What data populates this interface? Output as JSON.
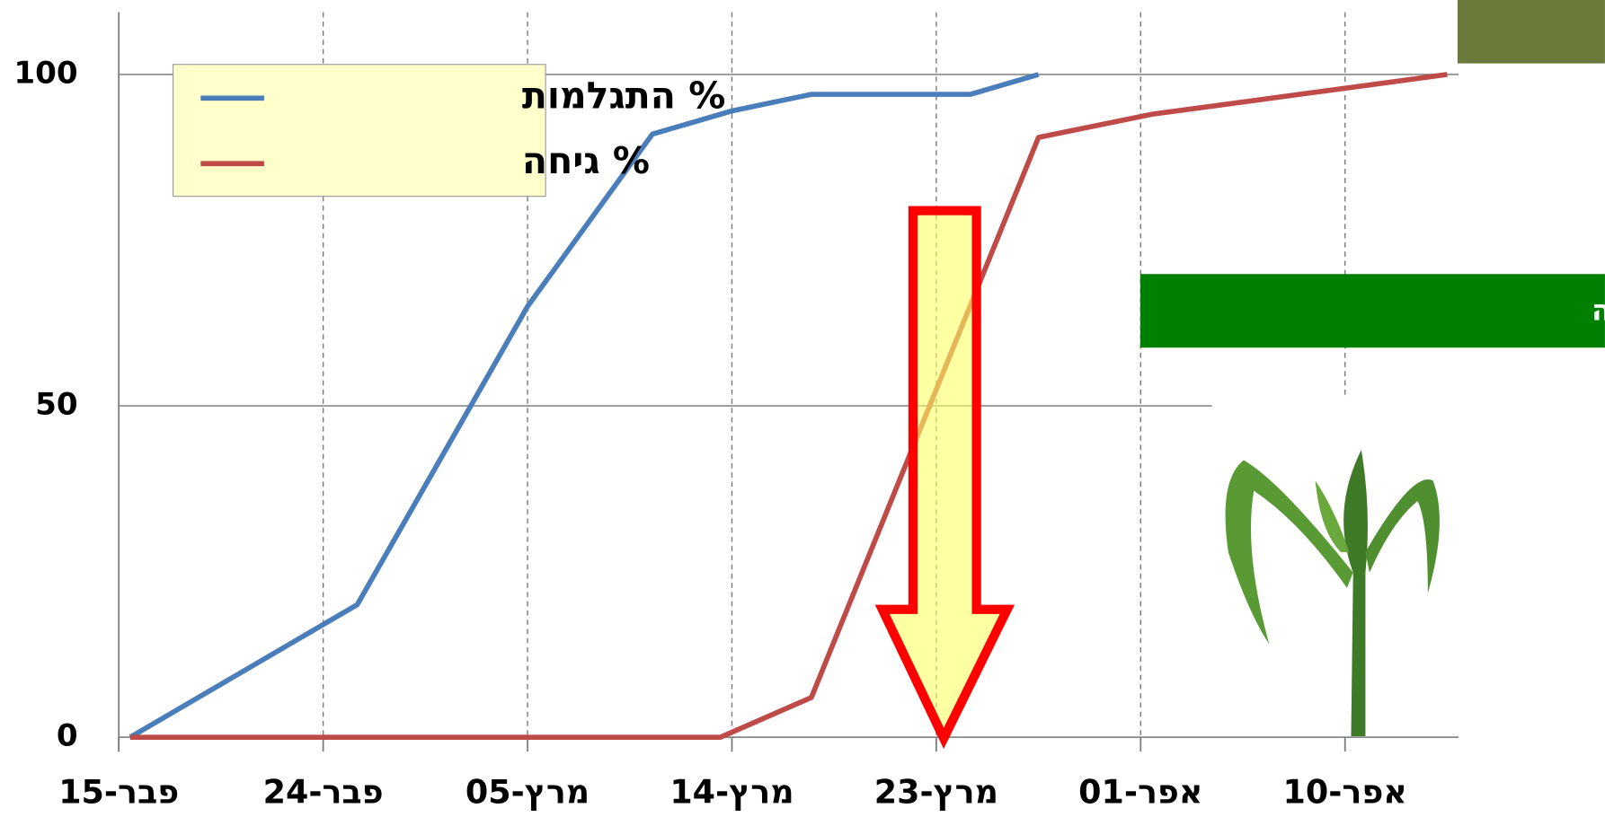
{
  "chart_data": {
    "type": "line",
    "xlim": [
      46,
      105
    ],
    "xticks": [
      {
        "value": 46,
        "label": "15-פבר"
      },
      {
        "value": 55,
        "label": "24-פבר"
      },
      {
        "value": 64,
        "label": "05-מרץ"
      },
      {
        "value": 73,
        "label": "14-מרץ"
      },
      {
        "value": 82,
        "label": "23-מרץ"
      },
      {
        "value": 91,
        "label": "01-אפר"
      },
      {
        "value": 100,
        "label": "10-אפר"
      }
    ],
    "ylim": [
      0,
      110
    ],
    "yticks": [
      0,
      50,
      100
    ],
    "grid": true,
    "legend": "upper left",
    "series": [
      {
        "name": "% התגלמות",
        "color": "#4a7ebb",
        "x": [
          46.5,
          56.5,
          64,
          69.5,
          73,
          76.5,
          83.5,
          86.5
        ],
        "values": [
          0,
          20,
          65,
          91,
          94.5,
          97,
          97,
          100
        ]
      },
      {
        "name": "% גיחה",
        "color": "#be4b48",
        "x": [
          46.5,
          72.5,
          76.5,
          86.5,
          91.5,
          98,
          104.5
        ],
        "values": [
          0,
          0,
          6,
          90.5,
          94,
          97,
          100
        ]
      }
    ],
    "annotations": [
      "זריעות ראשונות בעונה"
    ]
  }
}
